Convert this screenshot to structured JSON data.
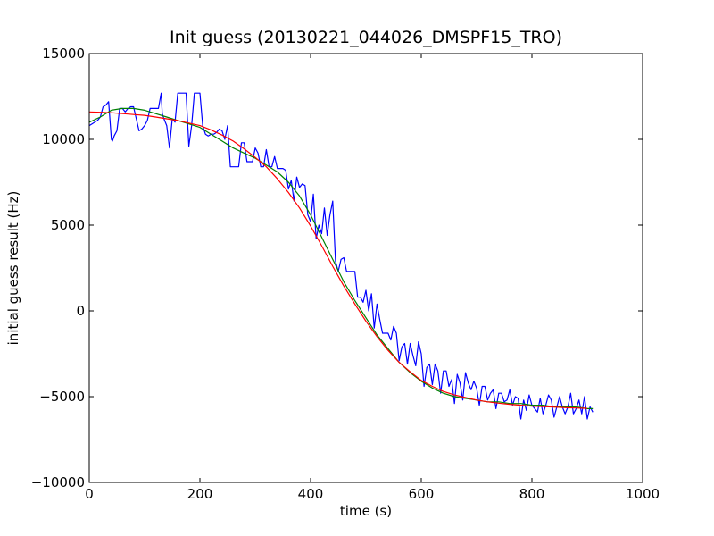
{
  "chart_data": {
    "type": "line",
    "title": "Init guess (20130221_044026_DMSPF15_TRO)",
    "xlabel": "time (s)",
    "ylabel": "initial guess result (Hz)",
    "xlim": [
      0,
      1000
    ],
    "ylim": [
      -10000,
      15000
    ],
    "xticks": [
      0,
      200,
      400,
      600,
      800,
      1000
    ],
    "yticks": [
      -10000,
      -5000,
      0,
      5000,
      10000,
      15000
    ],
    "xtick_labels": [
      "0",
      "200",
      "400",
      "600",
      "800",
      "1000"
    ],
    "ytick_labels": [
      "−10000",
      "−5000",
      "0",
      "5000",
      "10000",
      "15000"
    ],
    "grid": false,
    "legend": "none",
    "series": [
      {
        "color": "#0000ff",
        "x": [
          0,
          5,
          10,
          15,
          20,
          25,
          30,
          35,
          40,
          42,
          45,
          50,
          55,
          60,
          65,
          70,
          75,
          80,
          85,
          90,
          95,
          100,
          105,
          110,
          115,
          120,
          125,
          130,
          132,
          135,
          140,
          145,
          150,
          155,
          160,
          165,
          170,
          175,
          180,
          185,
          190,
          195,
          200,
          205,
          210,
          215,
          220,
          225,
          230,
          235,
          240,
          245,
          250,
          255,
          260,
          265,
          270,
          275,
          280,
          285,
          290,
          295,
          300,
          305,
          310,
          315,
          320,
          325,
          330,
          335,
          340,
          345,
          350,
          355,
          360,
          365,
          370,
          375,
          380,
          385,
          390,
          395,
          400,
          405,
          410,
          415,
          420,
          425,
          430,
          435,
          440,
          445,
          450,
          455,
          460,
          465,
          470,
          475,
          480,
          485,
          490,
          495,
          500,
          505,
          510,
          515,
          520,
          525,
          530,
          535,
          540,
          545,
          550,
          555,
          560,
          565,
          570,
          575,
          580,
          585,
          590,
          595,
          600,
          605,
          610,
          615,
          620,
          625,
          630,
          635,
          640,
          645,
          650,
          655,
          660,
          665,
          670,
          675,
          680,
          685,
          690,
          695,
          700,
          705,
          710,
          715,
          720,
          725,
          730,
          735,
          740,
          745,
          750,
          755,
          760,
          765,
          770,
          775,
          780,
          785,
          790,
          795,
          800,
          805,
          810,
          815,
          820,
          825,
          830,
          835,
          840,
          845,
          850,
          855,
          860,
          865,
          870,
          875,
          880,
          885,
          890,
          895,
          900,
          905,
          910
        ],
        "y": [
          10800,
          10900,
          11000,
          11100,
          11300,
          11900,
          12000,
          12200,
          10000,
          9900,
          10200,
          10500,
          11800,
          11800,
          11600,
          11800,
          11900,
          11900,
          11200,
          10500,
          10600,
          10800,
          11100,
          11800,
          11800,
          11800,
          11800,
          12700,
          11500,
          11200,
          10800,
          9500,
          11200,
          11000,
          12700,
          12700,
          12700,
          12700,
          9600,
          10800,
          12700,
          12700,
          12700,
          10800,
          10300,
          10200,
          10300,
          10300,
          10400,
          10600,
          10500,
          10000,
          10800,
          8400,
          8400,
          8400,
          8400,
          9800,
          9800,
          8700,
          8700,
          8700,
          9500,
          9200,
          8400,
          8400,
          9400,
          8400,
          8400,
          9000,
          8300,
          8300,
          8300,
          8200,
          7100,
          7600,
          6400,
          7800,
          7200,
          7400,
          7300,
          5600,
          5200,
          6800,
          4200,
          5000,
          4500,
          6000,
          4400,
          5600,
          6400,
          2900,
          2300,
          3000,
          3100,
          2300,
          2300,
          2300,
          2300,
          800,
          800,
          500,
          1200,
          0,
          1000,
          -1000,
          400,
          -500,
          -1300,
          -1300,
          -1300,
          -1700,
          -900,
          -1300,
          -2900,
          -2100,
          -1900,
          -3100,
          -1900,
          -2600,
          -3200,
          -1800,
          -2500,
          -4400,
          -3300,
          -3100,
          -4300,
          -3100,
          -3500,
          -4800,
          -3500,
          -3500,
          -4400,
          -4000,
          -5400,
          -3700,
          -4200,
          -5200,
          -3600,
          -4200,
          -4600,
          -4100,
          -4500,
          -5500,
          -4400,
          -4400,
          -5200,
          -4800,
          -4600,
          -5700,
          -4800,
          -4800,
          -5300,
          -5200,
          -4600,
          -5500,
          -5000,
          -5100,
          -6300,
          -5200,
          -5800,
          -4900,
          -5500,
          -5700,
          -5900,
          -5100,
          -6000,
          -5500,
          -4900,
          -5200,
          -6200,
          -5600,
          -5000,
          -5600,
          -6000,
          -5600,
          -4800,
          -6000,
          -5700,
          -5200,
          -6000,
          -5000,
          -6300,
          -5600,
          -5900
        ]
      },
      {
        "color": "#008000",
        "x": [
          0,
          20,
          40,
          60,
          80,
          100,
          120,
          140,
          160,
          180,
          200,
          220,
          240,
          260,
          280,
          300,
          320,
          340,
          360,
          380,
          400,
          420,
          440,
          460,
          480,
          500,
          520,
          540,
          560,
          580,
          600,
          620,
          640,
          660,
          680,
          700,
          720,
          740,
          760,
          780,
          800,
          820,
          840,
          860,
          880,
          900,
          910
        ],
        "y": [
          11000,
          11300,
          11700,
          11800,
          11800,
          11700,
          11500,
          11300,
          11100,
          10900,
          10700,
          10300,
          9900,
          9500,
          9200,
          8900,
          8500,
          8100,
          7500,
          6700,
          5600,
          4300,
          3000,
          1700,
          600,
          -400,
          -1400,
          -2200,
          -3000,
          -3600,
          -4100,
          -4500,
          -4800,
          -5000,
          -5100,
          -5200,
          -5300,
          -5300,
          -5400,
          -5400,
          -5500,
          -5500,
          -5600,
          -5600,
          -5600,
          -5700,
          -5700
        ]
      },
      {
        "color": "#ff0000",
        "x": [
          0,
          20,
          40,
          60,
          80,
          100,
          120,
          140,
          160,
          180,
          200,
          220,
          240,
          260,
          280,
          300,
          320,
          340,
          360,
          380,
          400,
          420,
          440,
          460,
          480,
          500,
          520,
          540,
          560,
          580,
          600,
          620,
          640,
          660,
          680,
          700,
          720,
          740,
          760,
          780,
          800,
          820,
          840,
          860,
          880,
          900
        ],
        "y": [
          11600,
          11580,
          11550,
          11500,
          11450,
          11400,
          11300,
          11200,
          11100,
          10950,
          10800,
          10550,
          10250,
          9900,
          9450,
          8950,
          8400,
          7700,
          6900,
          6000,
          4950,
          3800,
          2600,
          1450,
          400,
          -600,
          -1500,
          -2300,
          -3000,
          -3550,
          -4050,
          -4400,
          -4700,
          -4900,
          -5050,
          -5200,
          -5300,
          -5380,
          -5450,
          -5500,
          -5550,
          -5580,
          -5610,
          -5640,
          -5660,
          -5680
        ]
      }
    ]
  }
}
